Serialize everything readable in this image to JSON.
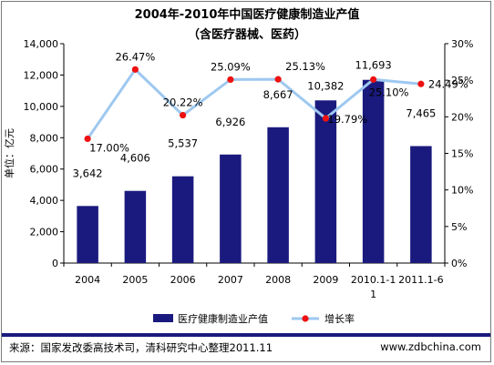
{
  "chart_data": {
    "type": "bar",
    "title": "2004年-2010年中国医疗健康制造业产值",
    "subtitle": "（含医疗器械、医药）",
    "ylabel": "单位：亿元",
    "categories": [
      "2004",
      "2005",
      "2006",
      "2007",
      "2008",
      "2009",
      "2010.1-11",
      "2011.1-6"
    ],
    "series": [
      {
        "name": "医疗健康制造业产值",
        "type": "bar",
        "axis": "left",
        "values": [
          3642,
          4606,
          5537,
          6926,
          8667,
          10382,
          11693,
          7465
        ],
        "labels": [
          "3,642",
          "4,606",
          "5,537",
          "6,926",
          "8,667",
          "10,382",
          "11,693",
          "7,465"
        ],
        "color": "#1a1a7e"
      },
      {
        "name": "增长率",
        "type": "line",
        "axis": "right",
        "values": [
          17.0,
          26.47,
          20.22,
          25.09,
          25.13,
          19.79,
          25.1,
          24.49
        ],
        "labels": [
          "17.00%",
          "26.47%",
          "20.22%",
          "25.09%",
          "25.13%",
          "19.79%",
          "25.10%",
          "24.49%"
        ],
        "color": "#9ec8f0",
        "marker_color": "#ee1111"
      }
    ],
    "ylim_left": [
      0,
      14000
    ],
    "yticks_left": [
      "0",
      "2,000",
      "4,000",
      "6,000",
      "8,000",
      "10,000",
      "12,000",
      "14,000"
    ],
    "ylim_right": [
      0,
      30
    ],
    "yticks_right": [
      "0%",
      "5%",
      "10%",
      "15%",
      "20%",
      "25%",
      "30%"
    ],
    "legend_position": "bottom",
    "grid": false
  },
  "footer": {
    "source": "来源：国家发改委高技术司，清科研究中心整理2011.11",
    "site": "www.zdbchina.com"
  }
}
